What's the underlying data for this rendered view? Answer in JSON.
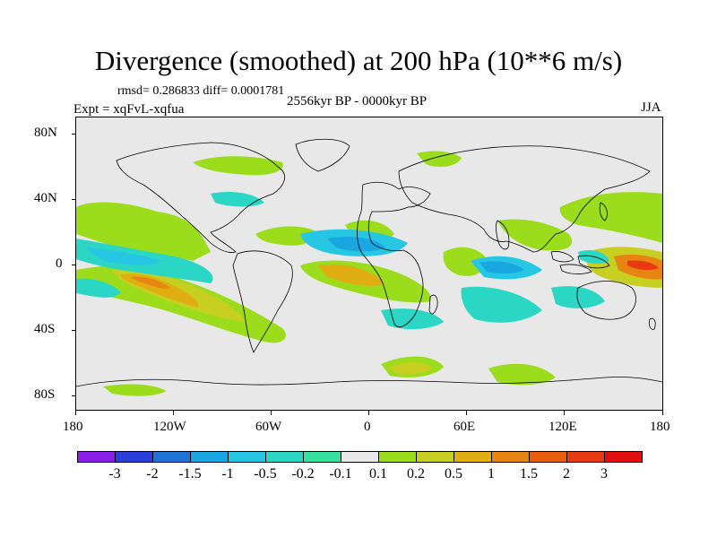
{
  "title": "Divergence (smoothed) at 200 hPa (10**6 m/s)",
  "stats": "rmsd= 0.286833 diff= 0.0001781",
  "period": "2556kyr BP - 0000kyr BP",
  "experiment": "Expt = xqFvL-xqfua",
  "season": "JJA",
  "lat_labels": [
    "80N",
    "40N",
    "0",
    "40S",
    "80S"
  ],
  "lon_labels": [
    "180",
    "120W",
    "60W",
    "0",
    "60E",
    "120E",
    "180"
  ],
  "colorbar": {
    "labels": [
      "-3",
      "-2",
      "-1.5",
      "-1",
      "-0.5",
      "-0.2",
      "-0.1",
      "0.1",
      "0.2",
      "0.5",
      "1",
      "1.5",
      "2",
      "3"
    ],
    "colors": [
      "#8a1ee6",
      "#2b3fd9",
      "#1f74d6",
      "#1aa6e0",
      "#27c7e3",
      "#2bd6c4",
      "#36e0a0",
      "#e8e8e8",
      "#9bdc1c",
      "#c6cf22",
      "#e0ad12",
      "#e68512",
      "#e85f10",
      "#e83a12",
      "#e01010"
    ]
  },
  "map_colors": {
    "background": "#e8e8e8",
    "coast": "#000000"
  }
}
